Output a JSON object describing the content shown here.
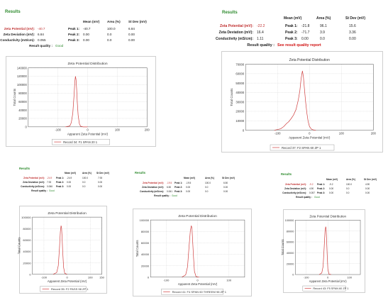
{
  "panels": [
    {
      "results_title": "Results",
      "headers": {
        "mean": "Mean (mV)",
        "area": "Area (%)",
        "stdev": "St Dev (mV)"
      },
      "rows": [
        {
          "label": "Zeta Potential (mV):",
          "value": "-40.7",
          "peak": "Peak 1:",
          "mean": "-40.7",
          "area": "100.0",
          "stdev": "6.84"
        },
        {
          "label": "Zeta Deviation (mV):",
          "value": "6.84",
          "peak": "Peak 2:",
          "mean": "0.00",
          "area": "0.0",
          "stdev": "0.00"
        },
        {
          "label": "Conductivity (mS/cm):",
          "value": "0.055",
          "peak": "Peak 3:",
          "mean": "0.00",
          "area": "0.0",
          "stdev": "0.00"
        }
      ],
      "quality_label": "Result quality :",
      "quality_value": "Good",
      "quality_kind": "good"
    },
    {
      "results_title": "Results",
      "headers": {
        "mean": "Mean (mV)",
        "area": "Area (%)",
        "stdev": "St Dev (mV)"
      },
      "rows": [
        {
          "label": "Zeta Potential (mV):",
          "value": "-22.2",
          "peak": "Peak 1:",
          "mean": "-21.8",
          "area": "96.1",
          "stdev": "15.6"
        },
        {
          "label": "Zeta Deviation (mV):",
          "value": "16.4",
          "peak": "Peak 2:",
          "mean": "-71.7",
          "area": "3.9",
          "stdev": "3.36"
        },
        {
          "label": "Conductivity (mS/cm):",
          "value": "1.11",
          "peak": "Peak 3:",
          "mean": "0.00",
          "area": "0.0",
          "stdev": "0.00"
        }
      ],
      "quality_label": "Result quality :",
      "quality_value": "See result quality report",
      "quality_kind": "bad"
    },
    {
      "results_title": "Results",
      "headers": {
        "mean": "Mean (mV)",
        "area": "Area (%)",
        "stdev": "St Dev (mV)"
      },
      "rows": [
        {
          "label": "Zeta Potential (mV):",
          "value": "-24.9",
          "peak": "Peak 1:",
          "mean": "-24.9",
          "area": "100.0",
          "stdev": "7.93"
        },
        {
          "label": "Zeta Deviation (mV):",
          "value": "7.93",
          "peak": "Peak 2:",
          "mean": "0.00",
          "area": "0.0",
          "stdev": "0.00"
        },
        {
          "label": "Conductivity (mS/cm):",
          "value": "0.066",
          "peak": "Peak 3:",
          "mean": "0.00",
          "area": "0.0",
          "stdev": "0.00"
        }
      ],
      "quality_label": "Result quality :",
      "quality_value": "Good",
      "quality_kind": "good"
    },
    {
      "results_title": "Results",
      "headers": {
        "mean": "Mean (mV)",
        "area": "Area (%)",
        "stdev": "St Dev (mV)"
      },
      "rows": [
        {
          "label": "Zeta Potential (mV):",
          "value": "-19.5",
          "peak": "Peak 1:",
          "mean": "-19.5",
          "area": "100.0",
          "stdev": "6.50"
        },
        {
          "label": "Zeta Deviation (mV):",
          "value": "6.50",
          "peak": "Peak 2:",
          "mean": "0.00",
          "area": "0.0",
          "stdev": "0.00"
        },
        {
          "label": "Conductivity (mS/cm):",
          "value": "0.061",
          "peak": "Peak 3:",
          "mean": "0.00",
          "area": "0.0",
          "stdev": "0.00"
        }
      ],
      "quality_label": "Result quality :",
      "quality_value": "Good",
      "quality_kind": "good"
    },
    {
      "results_title": "Results",
      "headers": {
        "mean": "Mean (mV)",
        "area": "Area (%)",
        "stdev": "St Dev (mV)"
      },
      "rows": [
        {
          "label": "Zeta Potential (mV):",
          "value": "-9.2",
          "peak": "Peak 1:",
          "mean": "-9.2",
          "area": "100.0",
          "stdev": "4.90"
        },
        {
          "label": "Zeta Deviation (mV):",
          "value": "4.90",
          "peak": "Peak 2:",
          "mean": "0.00",
          "area": "0.0",
          "stdev": "0.00"
        },
        {
          "label": "Conductivity (mS/cm):",
          "value": "0.057",
          "peak": "Peak 3:",
          "mean": "0.00",
          "area": "0.0",
          "stdev": "0.00"
        }
      ],
      "quality_label": "Result quality :",
      "quality_value": "Good",
      "quality_kind": "good"
    }
  ],
  "chart_data": [
    {
      "type": "line",
      "title": "Zeta Potential Distribution",
      "xlabel": "Apparent Zeta Potential (mV)",
      "ylabel": "Total Counts",
      "xlim": [
        -200,
        200
      ],
      "ylim": [
        0,
        140000
      ],
      "xticks": [
        -100,
        0,
        100,
        200
      ],
      "yticks": [
        0,
        20000,
        40000,
        60000,
        80000,
        100000,
        120000,
        140000
      ],
      "grid": true,
      "legend_position": "bottom",
      "color": "#d04040",
      "series": [
        {
          "name": "Record 34: F1 SPAN 20 1",
          "x": [
            -75,
            -60,
            -55,
            -50,
            -46,
            -43,
            -41,
            -39,
            -37,
            -35,
            -32,
            -28,
            -24,
            -15,
            0
          ],
          "y": [
            0,
            2000,
            10000,
            32000,
            72000,
            108000,
            120000,
            112000,
            90000,
            60000,
            28000,
            8000,
            1500,
            0,
            0
          ]
        }
      ]
    },
    {
      "type": "line",
      "title": "Zeta Potential Distribution",
      "xlabel": "Apparent Zeta Potential (mV)",
      "ylabel": "Total Counts",
      "xlim": [
        -200,
        200
      ],
      "ylim": [
        0,
        70000
      ],
      "xticks": [
        -100,
        0,
        100,
        200
      ],
      "yticks": [
        0,
        10000,
        20000,
        30000,
        40000,
        50000,
        60000,
        70000
      ],
      "grid": true,
      "legend_position": "bottom",
      "color": "#d04040",
      "series": [
        {
          "name": "Record 37: F2 SPAN 60 ZP 1",
          "x": [
            -110,
            -90,
            -80,
            -72,
            -65,
            -58,
            -50,
            -42,
            -35,
            -30,
            -26,
            -22,
            -19,
            -16,
            -12,
            -8,
            -4,
            0,
            6,
            12,
            20
          ],
          "y": [
            0,
            1500,
            4000,
            7000,
            9000,
            12000,
            16000,
            22000,
            32000,
            42000,
            55000,
            63000,
            57000,
            45000,
            30000,
            18000,
            9000,
            4000,
            1200,
            300,
            0
          ]
        }
      ]
    },
    {
      "type": "line",
      "title": "Zeta Potential Distribution",
      "xlabel": "Apparent Zeta Potential (mV)",
      "ylabel": "Total Counts",
      "xlim": [
        -150,
        150
      ],
      "ylim": [
        0,
        100000
      ],
      "xticks": [
        -100,
        0,
        100,
        150
      ],
      "yticks": [
        0,
        20000,
        40000,
        60000,
        80000,
        100000
      ],
      "grid": true,
      "legend_position": "bottom",
      "color": "#d04040",
      "series": [
        {
          "name": "Record 35: F2 PASS 98 ZP 1",
          "x": [
            -60,
            -45,
            -38,
            -33,
            -29,
            -26,
            -24,
            -22,
            -19,
            -15,
            -10,
            0
          ],
          "y": [
            0,
            3000,
            15000,
            45000,
            75000,
            85000,
            82000,
            68000,
            40000,
            12000,
            1500,
            0
          ]
        }
      ]
    },
    {
      "type": "line",
      "title": "Zeta Potential Distribution",
      "xlabel": "Apparent Zeta Potential (mV)",
      "ylabel": "Total Counts",
      "xlim": [
        -150,
        150
      ],
      "ylim": [
        0,
        100000
      ],
      "xticks": [
        -100,
        0,
        100
      ],
      "yticks": [
        0,
        20000,
        40000,
        60000,
        80000,
        100000
      ],
      "grid": true,
      "legend_position": "bottom",
      "color": "#d04040",
      "series": [
        {
          "name": "Record 41: F4 SPAN 60 THREEM 98 ZP 1",
          "x": [
            -50,
            -38,
            -32,
            -27,
            -23,
            -20,
            -18,
            -16,
            -13,
            -10,
            -5,
            5
          ],
          "y": [
            0,
            4000,
            18000,
            55000,
            82000,
            90000,
            86000,
            66000,
            35000,
            10000,
            1000,
            0
          ]
        }
      ]
    },
    {
      "type": "line",
      "title": "Zeta Potential Distribution",
      "xlabel": "Apparent Zeta Potential (mV)",
      "ylabel": "Total Counts",
      "xlim": [
        -150,
        150
      ],
      "ylim": [
        0,
        100000
      ],
      "xticks": [
        -100,
        0,
        100
      ],
      "yticks": [
        0,
        20000,
        40000,
        60000,
        80000,
        100000
      ],
      "grid": true,
      "legend_position": "bottom",
      "color": "#d04040",
      "series": [
        {
          "name": "Record 43: F5 SPAN 60 ZP 1",
          "x": [
            -40,
            -28,
            -22,
            -17,
            -13,
            -10,
            -8,
            -6,
            -3,
            0,
            5,
            15
          ],
          "y": [
            0,
            3000,
            15000,
            50000,
            80000,
            88000,
            84000,
            65000,
            35000,
            10000,
            1000,
            0
          ]
        }
      ]
    }
  ]
}
